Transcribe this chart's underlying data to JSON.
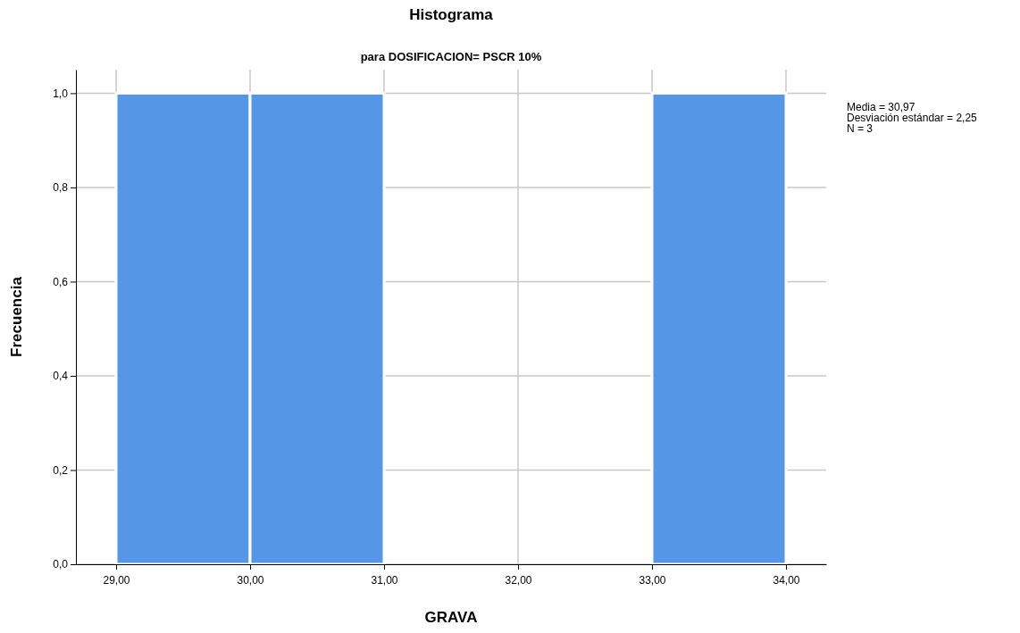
{
  "chart_data": {
    "type": "histogram",
    "title": "Histograma",
    "subtitle": "para DOSIFICACION= PSCR 10%",
    "xlabel": "GRAVA",
    "ylabel": "Frecuencia",
    "bins": [
      29,
      30,
      31,
      32,
      33,
      34
    ],
    "values": [
      1,
      1,
      0,
      0,
      1
    ],
    "color": "#5596e6",
    "xlim": [
      28.7,
      34.3
    ],
    "ylim": [
      0,
      1.05
    ],
    "xticks": [
      {
        "value": 29,
        "label": "29,00"
      },
      {
        "value": 30,
        "label": "30,00"
      },
      {
        "value": 31,
        "label": "31,00"
      },
      {
        "value": 32,
        "label": "32,00"
      },
      {
        "value": 33,
        "label": "33,00"
      },
      {
        "value": 34,
        "label": "34,00"
      }
    ],
    "yticks": [
      {
        "value": 0,
        "label": "0,0"
      },
      {
        "value": 0.2,
        "label": "0,2"
      },
      {
        "value": 0.4,
        "label": "0,4"
      },
      {
        "value": 0.6,
        "label": "0,6"
      },
      {
        "value": 0.8,
        "label": "0,8"
      },
      {
        "value": 1,
        "label": "1,0"
      }
    ],
    "grid": true,
    "annotations": [
      "Media = 30,97",
      "Desviación estándar = 2,25",
      "N = 3"
    ]
  }
}
